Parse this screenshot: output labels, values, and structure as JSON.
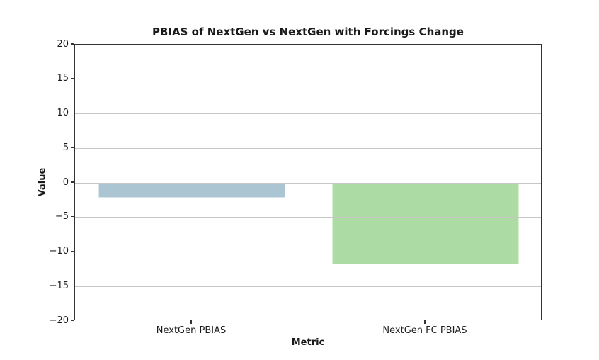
{
  "chart_data": {
    "type": "bar",
    "title": "PBIAS of NextGen vs NextGen with Forcings Change",
    "xlabel": "Metric",
    "ylabel": "Value",
    "categories": [
      "NextGen PBIAS",
      "NextGen FC PBIAS"
    ],
    "values": [
      -2.2,
      -11.8
    ],
    "bar_colors": [
      "#abc5d2",
      "#acdba4"
    ],
    "ylim": [
      -20,
      20
    ],
    "yticks": [
      -20,
      -15,
      -10,
      -5,
      0,
      5,
      10,
      15,
      20
    ],
    "bar_width_fraction": 0.8,
    "grid": true,
    "grid_over_bars": true,
    "legend": false,
    "colors": {
      "grid": "#c6c6c6",
      "spine": "#333333",
      "text": "#1a1a1a",
      "background": "#ffffff"
    }
  }
}
